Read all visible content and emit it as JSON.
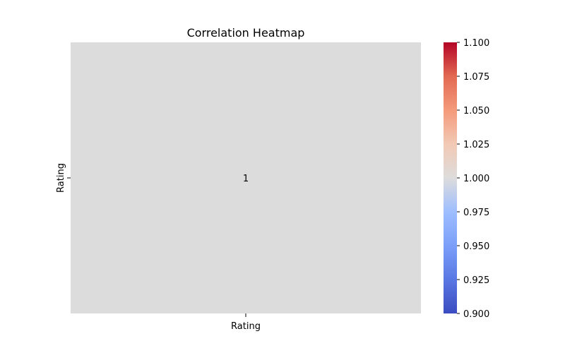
{
  "chart_data": {
    "type": "heatmap",
    "title": "Correlation Heatmap",
    "x_categories": [
      "Rating"
    ],
    "y_categories": [
      "Rating"
    ],
    "values": [
      [
        1
      ]
    ],
    "cell_annotations": [
      [
        "1"
      ]
    ],
    "colorbar": {
      "colormap": "coolwarm",
      "range": [
        0.9,
        1.1
      ],
      "ticks": [
        "0.900",
        "0.925",
        "0.950",
        "0.975",
        "1.000",
        "1.025",
        "1.050",
        "1.075",
        "1.100"
      ]
    },
    "grid": false,
    "legend": "colorbar-right"
  }
}
